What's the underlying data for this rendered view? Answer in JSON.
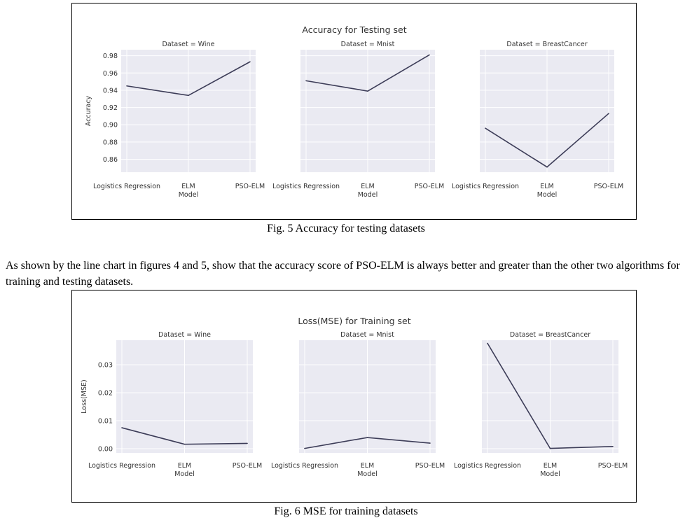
{
  "figure5": {
    "caption": "Fig. 5 Accuracy for testing datasets",
    "chart_data": {
      "type": "line",
      "title": "Accuracy for Testing set",
      "xlabel": "Model",
      "ylabel": "Accuracy",
      "categories": [
        "Logistics Regression",
        "ELM",
        "PSO-ELM"
      ],
      "ylim": [
        0.845,
        0.987
      ],
      "yticks": [
        0.86,
        0.88,
        0.9,
        0.92,
        0.94,
        0.96,
        0.98
      ],
      "ytick_labels": [
        "0.86",
        "0.88",
        "0.90",
        "0.92",
        "0.94",
        "0.96",
        "0.98"
      ],
      "grid": true,
      "line_color": "#3d3d58",
      "panel_bg": "#eaeaf2",
      "panels": [
        {
          "title": "Dataset = Wine",
          "values": [
            0.945,
            0.934,
            0.973
          ]
        },
        {
          "title": "Dataset = Mnist",
          "values": [
            0.951,
            0.939,
            0.981
          ]
        },
        {
          "title": "Dataset = BreastCancer",
          "values": [
            0.896,
            0.851,
            0.913
          ]
        }
      ]
    }
  },
  "paragraph": "As shown by the line chart in figures 4 and 5, show that the accuracy score of PSO-ELM is always better and greater than the other two algorithms for training and testing datasets.",
  "figure6": {
    "caption": "Fig. 6 MSE for training datasets",
    "chart_data": {
      "type": "line",
      "title": "Loss(MSE) for Training set",
      "xlabel": "Model",
      "ylabel": "Loss(MSE)",
      "categories": [
        "Logistics Regression",
        "ELM",
        "PSO-ELM"
      ],
      "ylim": [
        -0.0015,
        0.0388
      ],
      "yticks": [
        0.0,
        0.01,
        0.02,
        0.03
      ],
      "ytick_labels": [
        "0.00",
        "0.01",
        "0.02",
        "0.03"
      ],
      "grid": true,
      "line_color": "#3d3d58",
      "panel_bg": "#eaeaf2",
      "panels": [
        {
          "title": "Dataset = Wine",
          "values": [
            0.0075,
            0.0016,
            0.0019
          ]
        },
        {
          "title": "Dataset = Mnist",
          "values": [
            0.0001,
            0.004,
            0.002
          ]
        },
        {
          "title": "Dataset = BreastCancer",
          "values": [
            0.0377,
            0.0001,
            0.0008
          ]
        }
      ]
    }
  }
}
